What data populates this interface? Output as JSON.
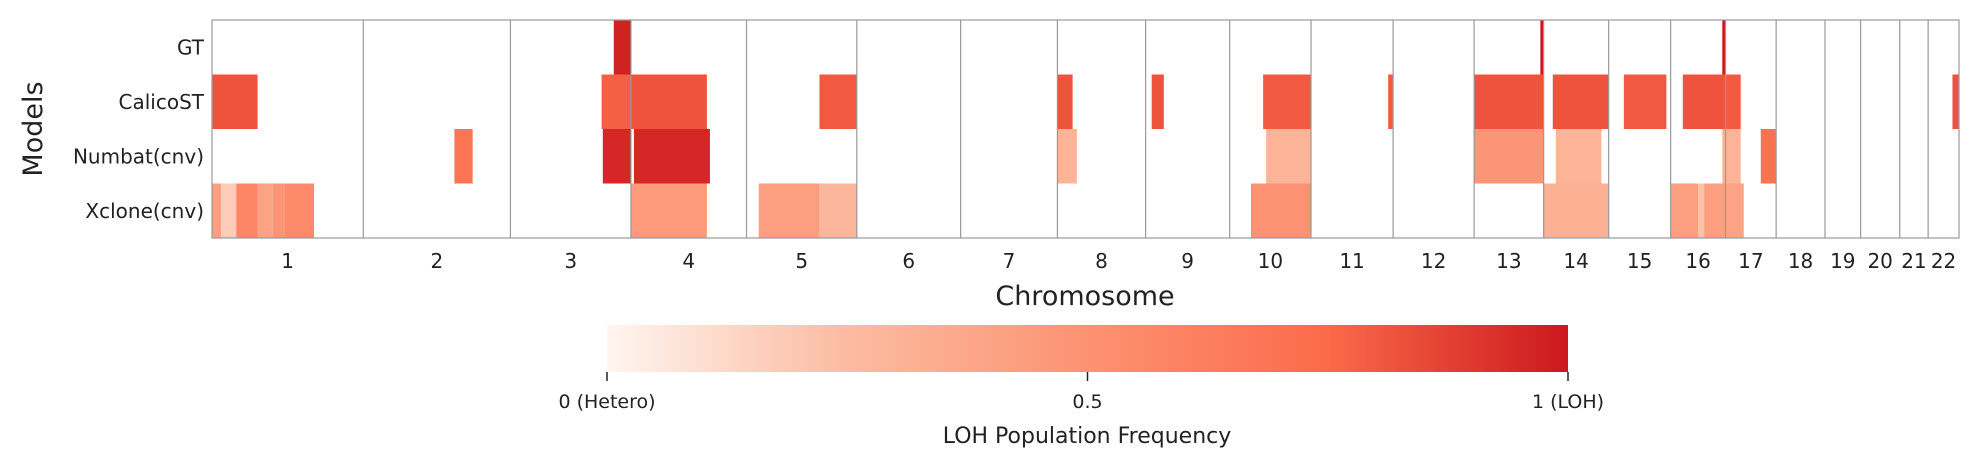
{
  "chart_data": {
    "type": "heatmap",
    "title": "",
    "xlabel": "Chromosome",
    "ylabel": "Models",
    "rows": [
      "GT",
      "CalicoST",
      "Numbat(cnv)",
      "Xclone(cnv)"
    ],
    "chromosomes": [
      "1",
      "2",
      "3",
      "4",
      "5",
      "6",
      "7",
      "8",
      "9",
      "10",
      "11",
      "12",
      "13",
      "14",
      "15",
      "16",
      "17",
      "18",
      "19",
      "20",
      "21",
      "22"
    ],
    "chromosome_sizes": [
      248.9,
      242.2,
      198.3,
      190.2,
      181.5,
      170.8,
      159.3,
      145.1,
      138.4,
      133.8,
      135.1,
      133.3,
      114.4,
      107.0,
      102.0,
      90.3,
      83.3,
      80.4,
      58.6,
      64.4,
      46.7,
      50.8
    ],
    "colormap": {
      "low": "#fff5f0",
      "mid": "#fb6a4a",
      "high": "#cb181d"
    },
    "colorbar": {
      "min": 0,
      "max": 1,
      "ticks": [
        0,
        0.5,
        1
      ],
      "tick_labels": [
        "0 (Hetero)",
        "0.5",
        "1 (LOH)"
      ],
      "label": "LOH Population Frequency"
    },
    "segments": [
      {
        "row": "GT",
        "chr": "3",
        "start": 170,
        "end": 198.3,
        "value": 0.97
      },
      {
        "row": "GT",
        "chr": "13",
        "start": 109,
        "end": 114.4,
        "value": 1.0
      },
      {
        "row": "GT",
        "chr": "16",
        "start": 85,
        "end": 90.3,
        "value": 1.0
      },
      {
        "row": "CalicoST",
        "chr": "1",
        "start": 0,
        "end": 75,
        "value": 0.82
      },
      {
        "row": "CalicoST",
        "chr": "3",
        "start": 150,
        "end": 198.3,
        "value": 0.78
      },
      {
        "row": "CalicoST",
        "chr": "4",
        "start": 0,
        "end": 125,
        "value": 0.82
      },
      {
        "row": "CalicoST",
        "chr": "5",
        "start": 120,
        "end": 181.5,
        "value": 0.8
      },
      {
        "row": "CalicoST",
        "chr": "8",
        "start": 0,
        "end": 25,
        "value": 0.82
      },
      {
        "row": "CalicoST",
        "chr": "9",
        "start": 10,
        "end": 30,
        "value": 0.82
      },
      {
        "row": "CalicoST",
        "chr": "10",
        "start": 55,
        "end": 133.8,
        "value": 0.8
      },
      {
        "row": "CalicoST",
        "chr": "11",
        "start": 127,
        "end": 135.1,
        "value": 0.8
      },
      {
        "row": "CalicoST",
        "chr": "13",
        "start": 0,
        "end": 114.4,
        "value": 0.82
      },
      {
        "row": "CalicoST",
        "chr": "14",
        "start": 15,
        "end": 107,
        "value": 0.82
      },
      {
        "row": "CalicoST",
        "chr": "15",
        "start": 25,
        "end": 95,
        "value": 0.8
      },
      {
        "row": "CalicoST",
        "chr": "16",
        "start": 20,
        "end": 90.3,
        "value": 0.82
      },
      {
        "row": "CalicoST",
        "chr": "17",
        "start": 0,
        "end": 25,
        "value": 0.8
      },
      {
        "row": "CalicoST",
        "chr": "22",
        "start": 40,
        "end": 50.8,
        "value": 0.82
      },
      {
        "row": "Numbat(cnv)",
        "chr": "2",
        "start": 150,
        "end": 180,
        "value": 0.68
      },
      {
        "row": "Numbat(cnv)",
        "chr": "3",
        "start": 152,
        "end": 198.3,
        "value": 0.95
      },
      {
        "row": "Numbat(cnv)",
        "chr": "4",
        "start": 5,
        "end": 130,
        "value": 0.95
      },
      {
        "row": "Numbat(cnv)",
        "chr": "8",
        "start": 0,
        "end": 32,
        "value": 0.3
      },
      {
        "row": "Numbat(cnv)",
        "chr": "10",
        "start": 60,
        "end": 133.8,
        "value": 0.3
      },
      {
        "row": "Numbat(cnv)",
        "chr": "13",
        "start": 0,
        "end": 114.4,
        "value": 0.48
      },
      {
        "row": "Numbat(cnv)",
        "chr": "14",
        "start": 20,
        "end": 95,
        "value": 0.3
      },
      {
        "row": "Numbat(cnv)",
        "chr": "16",
        "start": 85,
        "end": 90.3,
        "value": 0.3
      },
      {
        "row": "Numbat(cnv)",
        "chr": "17",
        "start": 0,
        "end": 25,
        "value": 0.3
      },
      {
        "row": "Numbat(cnv)",
        "chr": "17",
        "start": 58,
        "end": 83.3,
        "value": 0.7
      },
      {
        "row": "Xclone(cnv)",
        "chr": "1",
        "start": 0,
        "end": 15,
        "value": 0.42
      },
      {
        "row": "Xclone(cnv)",
        "chr": "1",
        "start": 15,
        "end": 40,
        "value": 0.18
      },
      {
        "row": "Xclone(cnv)",
        "chr": "1",
        "start": 40,
        "end": 75,
        "value": 0.58
      },
      {
        "row": "Xclone(cnv)",
        "chr": "1",
        "start": 75,
        "end": 100,
        "value": 0.4
      },
      {
        "row": "Xclone(cnv)",
        "chr": "1",
        "start": 100,
        "end": 120,
        "value": 0.48
      },
      {
        "row": "Xclone(cnv)",
        "chr": "1",
        "start": 120,
        "end": 168,
        "value": 0.55
      },
      {
        "row": "Xclone(cnv)",
        "chr": "4",
        "start": 0,
        "end": 125,
        "value": 0.45
      },
      {
        "row": "Xclone(cnv)",
        "chr": "5",
        "start": 20,
        "end": 120,
        "value": 0.42
      },
      {
        "row": "Xclone(cnv)",
        "chr": "5",
        "start": 120,
        "end": 181.5,
        "value": 0.28
      },
      {
        "row": "Xclone(cnv)",
        "chr": "10",
        "start": 35,
        "end": 133.8,
        "value": 0.5
      },
      {
        "row": "Xclone(cnv)",
        "chr": "14",
        "start": 0,
        "end": 107,
        "value": 0.32
      },
      {
        "row": "Xclone(cnv)",
        "chr": "16",
        "start": 0,
        "end": 45,
        "value": 0.42
      },
      {
        "row": "Xclone(cnv)",
        "chr": "16",
        "start": 45,
        "end": 55,
        "value": 0.22
      },
      {
        "row": "Xclone(cnv)",
        "chr": "16",
        "start": 55,
        "end": 90.3,
        "value": 0.42
      },
      {
        "row": "Xclone(cnv)",
        "chr": "17",
        "start": 0,
        "end": 30,
        "value": 0.4
      }
    ]
  }
}
